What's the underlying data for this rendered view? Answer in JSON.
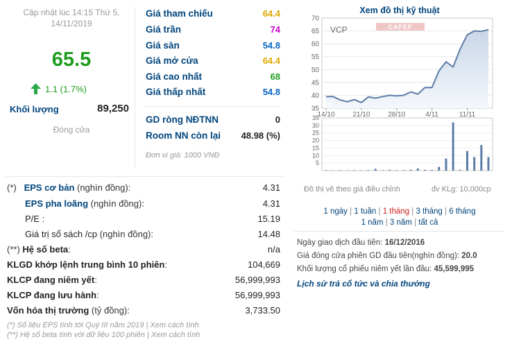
{
  "update_time": {
    "line1": "Cập nhật lúc 14:15 Thứ 5,",
    "line2": "14/11/2019"
  },
  "price": {
    "value": "65.5",
    "change": "1.1 (1.7%)",
    "color": "#1f9d1f"
  },
  "volume": {
    "label": "Khối lượng",
    "value": "89,250"
  },
  "session_status": "Đóng cửa",
  "prices": [
    {
      "label": "Giá tham chiếu",
      "value": "64.4",
      "color": "#e0a800"
    },
    {
      "label": "Giá trần",
      "value": "74",
      "color": "#cc00cc"
    },
    {
      "label": "Giá sàn",
      "value": "54.8",
      "color": "#0a66c2"
    },
    {
      "label": "Giá mở cửa",
      "value": "64.4",
      "color": "#e0a800"
    },
    {
      "label": "Giá cao nhất",
      "value": "68",
      "color": "#1f9d1f"
    },
    {
      "label": "Giá thấp nhất",
      "value": "54.8",
      "color": "#0a66c2"
    }
  ],
  "foreign": [
    {
      "label": "GD ròng NĐTNN",
      "value": "0"
    },
    {
      "label": "Room NN còn lại",
      "value": "48.98 (%)"
    }
  ],
  "unit_note": "Đơn vị giá: 1000 VNĐ",
  "financials": [
    {
      "prefix": "(*)",
      "label": "EPS cơ bản",
      "suffix": " (nghìn đồng):",
      "value": "4.31"
    },
    {
      "prefix": "",
      "label": "EPS pha loãng",
      "suffix": " (nghìn đồng):",
      "value": "4.31"
    },
    {
      "prefix": "",
      "label": "P/E",
      "suffix": " :",
      "value": "15.19"
    },
    {
      "prefix": "",
      "label": "Giá trị sổ sách /cp",
      "suffix": " (nghìn đồng):",
      "value": "14.48"
    },
    {
      "prefix": "(**)",
      "label": "Hệ số beta",
      "suffix": ":",
      "value": "n/a"
    },
    {
      "prefix": "",
      "label": "KLGD khớp lệnh trung bình 10 phiên",
      "suffix": ":",
      "value": "104,669"
    },
    {
      "prefix": "",
      "label": "KLCP đang niêm yết",
      "suffix": ":",
      "value": "56,999,993"
    },
    {
      "prefix": "",
      "label": "KLCP đang lưu hành",
      "suffix": ":",
      "value": "56,999,993"
    },
    {
      "prefix": "",
      "label": "Vốn hóa thị trường",
      "suffix": " (tỷ đồng):",
      "value": "3,733.50"
    }
  ],
  "footnotes": {
    "eps": "(*) Số liệu EPS tính tới Quý III năm 2019 | Xem cách tính",
    "beta": "(**) Hệ số beta tính với dữ liệu 100 phiên | Xem cách tính"
  },
  "chart_panel": {
    "title": "Xem đồ thị kỹ thuật",
    "ticker": "VCP",
    "logo": "CAFEF",
    "caption_left": "Đồ thị vẽ theo giá điều chỉnh",
    "caption_right": "đv KLg: 10,000cp",
    "ranges": [
      "1 ngày",
      "1 tuần",
      "1 tháng",
      "3 tháng",
      "6 tháng",
      "1 năm",
      "3 năm",
      "tất cả"
    ],
    "active_range": "1 tháng",
    "accent": "#3a5b8c"
  },
  "chart_data": [
    {
      "type": "area",
      "x": [
        "14/10",
        "15/10",
        "16/10",
        "17/10",
        "18/10",
        "21/10",
        "22/10",
        "23/10",
        "24/10",
        "25/10",
        "28/10",
        "29/10",
        "30/10",
        "31/10",
        "01/11",
        "04/11",
        "05/11",
        "06/11",
        "07/11",
        "08/11",
        "11/11",
        "12/11",
        "13/11",
        "14/11"
      ],
      "xticks": [
        "14/10",
        "21/10",
        "28/10",
        "4/11",
        "11/11"
      ],
      "values": [
        39.5,
        39.5,
        38.2,
        37.5,
        38.3,
        37.2,
        39.4,
        38.9,
        39.5,
        40,
        39.8,
        40,
        41.3,
        40.5,
        43,
        43,
        49.5,
        53,
        51,
        58,
        63.5,
        65,
        64.8,
        65.5
      ],
      "ylim": [
        35,
        70
      ],
      "yticks": [
        35,
        40,
        45,
        50,
        55,
        60,
        65,
        70
      ],
      "series_color": "#5b7ba6"
    },
    {
      "type": "bar",
      "x": [
        "14/10",
        "15/10",
        "16/10",
        "17/10",
        "18/10",
        "21/10",
        "22/10",
        "23/10",
        "24/10",
        "25/10",
        "28/10",
        "29/10",
        "30/10",
        "31/10",
        "01/11",
        "04/11",
        "05/11",
        "06/11",
        "07/11",
        "08/11",
        "11/11",
        "12/11",
        "13/11",
        "14/11"
      ],
      "values": [
        0.3,
        0.2,
        0.3,
        0.2,
        0.3,
        0.1,
        0.3,
        1.2,
        0.3,
        0.5,
        0.3,
        0.4,
        0.6,
        1.4,
        0.5,
        0.5,
        2.5,
        8,
        32,
        0.5,
        13,
        9,
        17,
        9
      ],
      "ylim": [
        0,
        35
      ],
      "yticks": [
        5,
        10,
        15,
        20,
        25,
        30,
        35
      ],
      "series_color": "#5b7ba6"
    }
  ],
  "listing_info": [
    {
      "label": "Ngày giao dịch đầu tiên: ",
      "value": "16/12/2016"
    },
    {
      "label": "Giá đóng cửa phiên GD đầu tiên(nghìn đồng): ",
      "value": "20.0"
    },
    {
      "label": "Khối lượng cổ phiếu niêm yết lần đầu: ",
      "value": "45,599,995"
    }
  ],
  "history_link": "Lịch sử trả cổ tức và chia thưởng"
}
